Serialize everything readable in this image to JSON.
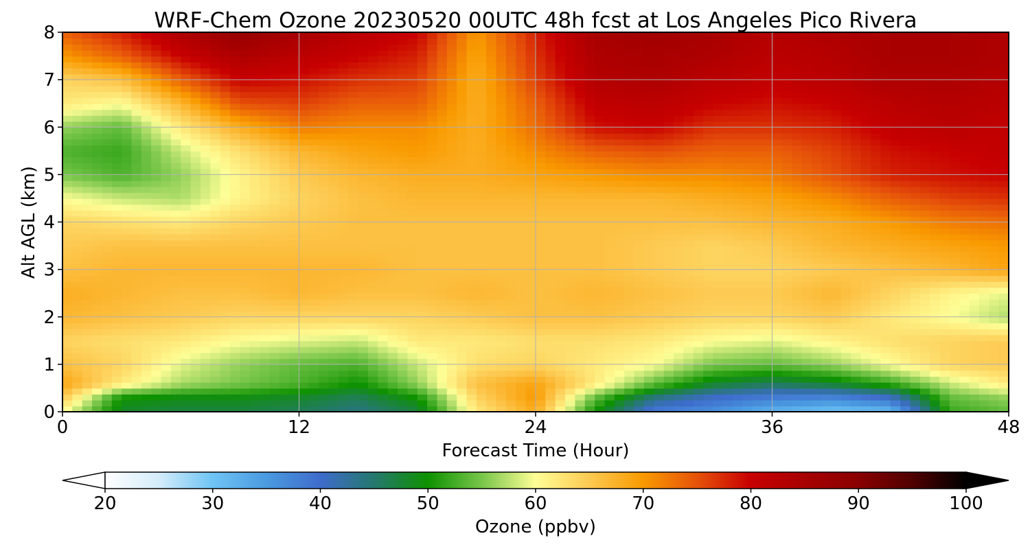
{
  "chart_data": {
    "type": "heatmap",
    "title": "WRF-Chem Ozone  20230520 00UTC 48h fcst at Los Angeles Pico Rivera",
    "xlabel": "Forecast Time (Hour)",
    "ylabel": "Alt AGL (km)",
    "xlim": [
      0,
      48
    ],
    "ylim": [
      0,
      8
    ],
    "xticks": [
      "0",
      "12",
      "24",
      "36",
      "48"
    ],
    "yticks": [
      "0",
      "1",
      "2",
      "3",
      "4",
      "5",
      "6",
      "7",
      "8"
    ],
    "grid": true,
    "x_hours": [
      0,
      3,
      6,
      9,
      12,
      15,
      18,
      21,
      24,
      27,
      30,
      33,
      36,
      39,
      42,
      45,
      48
    ],
    "y_km": [
      0,
      0.3,
      0.6,
      1,
      1.5,
      2,
      2.5,
      3,
      3.5,
      4,
      4.5,
      5,
      5.5,
      6,
      6.5,
      7,
      7.5,
      8
    ],
    "z_ppbv": [
      [
        60,
        48,
        47,
        47,
        46,
        44,
        47,
        62,
        68,
        50,
        38,
        36,
        32,
        30,
        31,
        52,
        54
      ],
      [
        65,
        50,
        49,
        49,
        48,
        46,
        50,
        64,
        70,
        54,
        44,
        40,
        38,
        37,
        40,
        54,
        56
      ],
      [
        69,
        62,
        57,
        55,
        53,
        50,
        56,
        66,
        69,
        62,
        54,
        48,
        46,
        48,
        52,
        58,
        62
      ],
      [
        66,
        64,
        59,
        56,
        54,
        53,
        58,
        63,
        64,
        62,
        60,
        55,
        54,
        56,
        60,
        64,
        65
      ],
      [
        64,
        63,
        62,
        60,
        59,
        58,
        62,
        62,
        63,
        63,
        62,
        60,
        59,
        61,
        63,
        64,
        65
      ],
      [
        67,
        66,
        65,
        64,
        64,
        64,
        64,
        65,
        66,
        66,
        65,
        64,
        64,
        65,
        62,
        60,
        57
      ],
      [
        68,
        67,
        66,
        66,
        67,
        66,
        66,
        67,
        66,
        67,
        66,
        65,
        65,
        67,
        64,
        61,
        59
      ],
      [
        66,
        67,
        67,
        67,
        67,
        67,
        66,
        66,
        66,
        66,
        65,
        64,
        64,
        65,
        66,
        67,
        69
      ],
      [
        65,
        66,
        66,
        66,
        66,
        66,
        66,
        66,
        66,
        66,
        65,
        64,
        65,
        67,
        68,
        69,
        70
      ],
      [
        64,
        63,
        62,
        64,
        65,
        66,
        66,
        66,
        66,
        66,
        66,
        66,
        67,
        68,
        70,
        72,
        73
      ],
      [
        60,
        58,
        57,
        61,
        64,
        66,
        67,
        67,
        67,
        67,
        67,
        68,
        69,
        71,
        74,
        76,
        77
      ],
      [
        55,
        53,
        56,
        61,
        65,
        67,
        68,
        68,
        69,
        70,
        71,
        71,
        72,
        75,
        78,
        79,
        80
      ],
      [
        53,
        52,
        58,
        63,
        67,
        69,
        70,
        68,
        71,
        74,
        75,
        74,
        74,
        76,
        79,
        80,
        81
      ],
      [
        56,
        54,
        62,
        68,
        72,
        71,
        71,
        68,
        73,
        79,
        80,
        77,
        77,
        78,
        81,
        82,
        81
      ],
      [
        62,
        60,
        67,
        75,
        76,
        74,
        74,
        68,
        74,
        81,
        82,
        80,
        79,
        80,
        82,
        83,
        82
      ],
      [
        64,
        66,
        74,
        80,
        79,
        77,
        76,
        68,
        76,
        83,
        84,
        82,
        81,
        82,
        84,
        84,
        83
      ],
      [
        70,
        74,
        80,
        84,
        82,
        80,
        78,
        69,
        77,
        84,
        85,
        84,
        82,
        83,
        85,
        85,
        84
      ],
      [
        74,
        78,
        84,
        88,
        85,
        82,
        80,
        70,
        78,
        85,
        86,
        85,
        83,
        84,
        85,
        85,
        84
      ]
    ],
    "colorbar": {
      "label": "Ozone  (ppbv)",
      "min": 20,
      "max": 100,
      "extend": "both",
      "ticks": [
        "20",
        "30",
        "40",
        "50",
        "60",
        "70",
        "80",
        "90",
        "100"
      ],
      "stops": [
        {
          "v": 20,
          "c": "#ffffff"
        },
        {
          "v": 25,
          "c": "#d4ecfa"
        },
        {
          "v": 30,
          "c": "#6ec4f5"
        },
        {
          "v": 35,
          "c": "#4a9ae0"
        },
        {
          "v": 40,
          "c": "#3e6ccc"
        },
        {
          "v": 45,
          "c": "#25786e"
        },
        {
          "v": 50,
          "c": "#0e9200"
        },
        {
          "v": 55,
          "c": "#78c64a"
        },
        {
          "v": 60,
          "c": "#fefe96"
        },
        {
          "v": 65,
          "c": "#fdca52"
        },
        {
          "v": 70,
          "c": "#f99a00"
        },
        {
          "v": 75,
          "c": "#e6520a"
        },
        {
          "v": 80,
          "c": "#c80000"
        },
        {
          "v": 85,
          "c": "#a80000"
        },
        {
          "v": 90,
          "c": "#8a0000"
        },
        {
          "v": 95,
          "c": "#500000"
        },
        {
          "v": 100,
          "c": "#000000"
        }
      ]
    }
  }
}
